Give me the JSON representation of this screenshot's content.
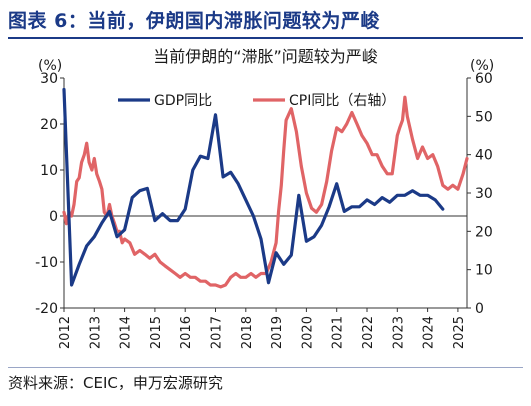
{
  "figure_title": "图表 6：当前，伊朗国内滞胀问题较为严峻",
  "source": "资料来源：CEIC，申万宏源研究",
  "colors": {
    "title": "#1b3a87",
    "gdp": "#1b3a87",
    "cpi": "#e06466"
  },
  "chart_data": {
    "type": "line",
    "title": "当前伊朗的“滞胀”问题较为严峻",
    "left_unit": "(%)",
    "right_unit": "(%)",
    "x_range": [
      2012.0,
      2025.3
    ],
    "x_tick_labels": [
      "2012",
      "2013",
      "2014",
      "2015",
      "2016",
      "2017",
      "2018",
      "2019",
      "2020",
      "2021",
      "2022",
      "2023",
      "2024",
      "2025"
    ],
    "y_left": {
      "range": [
        -20,
        30
      ],
      "ticks": [
        "-20",
        "-10",
        "0",
        "10",
        "20",
        "30"
      ]
    },
    "y_right": {
      "range": [
        0,
        60
      ],
      "ticks": [
        "0",
        "10",
        "20",
        "30",
        "40",
        "50",
        "60"
      ]
    },
    "legend_position": "top-center",
    "grid": false,
    "series": [
      {
        "name": "GDP同比",
        "axis": "left",
        "x": [
          2012.0,
          2012.25,
          2012.5,
          2012.75,
          2013.0,
          2013.25,
          2013.5,
          2013.75,
          2014.0,
          2014.25,
          2014.5,
          2014.75,
          2015.0,
          2015.25,
          2015.5,
          2015.75,
          2016.0,
          2016.25,
          2016.5,
          2016.75,
          2017.0,
          2017.25,
          2017.5,
          2017.75,
          2018.0,
          2018.25,
          2018.5,
          2018.75,
          2019.0,
          2019.25,
          2019.5,
          2019.75,
          2020.0,
          2020.25,
          2020.5,
          2020.75,
          2021.0,
          2021.25,
          2021.5,
          2021.75,
          2022.0,
          2022.25,
          2022.5,
          2022.75,
          2023.0,
          2023.25,
          2023.5,
          2023.75,
          2024.0,
          2024.25,
          2024.5,
          2024.75,
          2025.0
        ],
        "values": [
          27.5,
          -15.0,
          -10.5,
          -6.5,
          -4.5,
          -1.5,
          1.0,
          -4.5,
          -3.0,
          4.0,
          5.5,
          6.0,
          -1.0,
          0.5,
          -1.0,
          -1.0,
          1.5,
          10.0,
          13.0,
          12.5,
          22.0,
          8.5,
          9.5,
          7.0,
          3.5,
          0.0,
          -5.0,
          -14.5,
          -8.0,
          -10.5,
          -8.5,
          4.5,
          -5.5,
          -4.5,
          -2.0,
          2.0,
          7.0,
          1.0,
          2.0,
          2.0,
          3.5,
          2.5,
          4.0,
          3.0,
          4.5,
          4.5,
          5.5,
          4.5,
          4.5,
          3.5,
          1.5,
          null,
          null
        ]
      },
      {
        "name": "CPI同比（右轴）",
        "axis": "right",
        "x": [
          2012.0,
          2012.08,
          2012.17,
          2012.25,
          2012.33,
          2012.42,
          2012.5,
          2012.58,
          2012.67,
          2012.75,
          2012.83,
          2012.92,
          2013.0,
          2013.08,
          2013.17,
          2013.25,
          2013.33,
          2013.42,
          2013.5,
          2013.58,
          2013.67,
          2013.75,
          2013.83,
          2013.92,
          2014.0,
          2014.17,
          2014.33,
          2014.5,
          2014.67,
          2014.83,
          2015.0,
          2015.17,
          2015.33,
          2015.5,
          2015.67,
          2015.83,
          2016.0,
          2016.17,
          2016.33,
          2016.5,
          2016.67,
          2016.83,
          2017.0,
          2017.17,
          2017.33,
          2017.5,
          2017.67,
          2017.83,
          2018.0,
          2018.17,
          2018.33,
          2018.5,
          2018.67,
          2018.83,
          2019.0,
          2019.08,
          2019.17,
          2019.25,
          2019.33,
          2019.5,
          2019.67,
          2019.83,
          2020.0,
          2020.17,
          2020.33,
          2020.5,
          2020.67,
          2020.83,
          2021.0,
          2021.17,
          2021.33,
          2021.5,
          2021.67,
          2021.83,
          2022.0,
          2022.17,
          2022.33,
          2022.5,
          2022.67,
          2022.83,
          2023.0,
          2023.08,
          2023.17,
          2023.25,
          2023.33,
          2023.5,
          2023.67,
          2023.83,
          2024.0,
          2024.17,
          2024.33,
          2024.5,
          2024.67,
          2024.83,
          2025.0,
          2025.17,
          2025.3
        ],
        "values": [
          25,
          22,
          25,
          24,
          27,
          33,
          34,
          38,
          40,
          43,
          38,
          36,
          39,
          35,
          33,
          31,
          25,
          24,
          27,
          24,
          22,
          20,
          20,
          17,
          18,
          17,
          14,
          15,
          14,
          13,
          14,
          12,
          11,
          10,
          9,
          8,
          9,
          8,
          8,
          7,
          7,
          6,
          6,
          5.5,
          6,
          8,
          9,
          8,
          8,
          9,
          8,
          9,
          9,
          12,
          17,
          25,
          32,
          41,
          49,
          52,
          46,
          37,
          30,
          26,
          25,
          27,
          33,
          41,
          47,
          46,
          48,
          51,
          48,
          45,
          43,
          40,
          40,
          37,
          35,
          35,
          45,
          47,
          49,
          55,
          50,
          44,
          39,
          42,
          39,
          40,
          37,
          32,
          31,
          32,
          31,
          35,
          39
        ]
      }
    ]
  }
}
